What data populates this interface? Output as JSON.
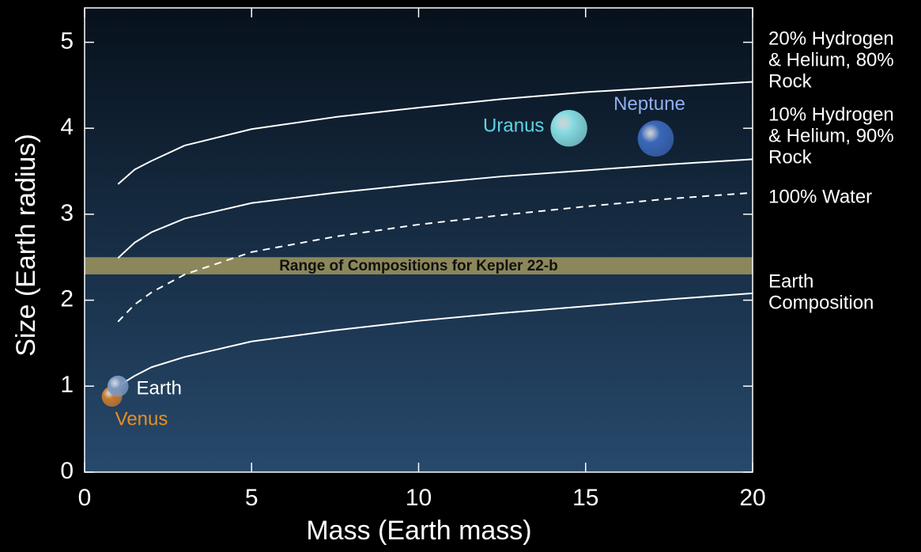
{
  "chart_data": {
    "type": "line",
    "x_label": "Mass (Earth mass)",
    "y_label": "Size (Earth radius)",
    "xlim": [
      0,
      20
    ],
    "ylim": [
      0,
      5.4
    ],
    "xticks": [
      0,
      5,
      10,
      15,
      20
    ],
    "yticks": [
      0,
      1,
      2,
      3,
      4,
      5
    ],
    "x": [
      1,
      1.5,
      2,
      3,
      5,
      7.5,
      10,
      12.5,
      15,
      17.5,
      20
    ],
    "series": [
      {
        "name": [
          "20% Hydrogen",
          "& Helium, 80%",
          "Rock"
        ],
        "color": "#ffffff",
        "dashed": false,
        "values": [
          3.35,
          3.52,
          3.62,
          3.8,
          3.99,
          4.13,
          4.24,
          4.34,
          4.42,
          4.48,
          4.54
        ]
      },
      {
        "name": [
          "10% Hydrogen",
          "& Helium, 90%",
          "Rock"
        ],
        "color": "#ffffff",
        "dashed": false,
        "values": [
          2.49,
          2.67,
          2.79,
          2.95,
          3.13,
          3.25,
          3.35,
          3.44,
          3.51,
          3.58,
          3.64
        ]
      },
      {
        "name": [
          "100% Water"
        ],
        "color": "#ffffff",
        "dashed": true,
        "values": [
          1.75,
          1.95,
          2.09,
          2.3,
          2.56,
          2.74,
          2.88,
          2.99,
          3.09,
          3.18,
          3.25
        ]
      },
      {
        "name": [
          "Earth",
          "Composition"
        ],
        "color": "#ffffff",
        "dashed": false,
        "values": [
          1.0,
          1.12,
          1.22,
          1.34,
          1.52,
          1.65,
          1.76,
          1.85,
          1.93,
          2.01,
          2.08
        ]
      }
    ],
    "band": {
      "range": [
        2.3,
        2.5
      ],
      "label": "Range of Compositions for Kepler 22-b",
      "color": "#8c875a"
    },
    "planets": {
      "type": "scatter",
      "names": [
        "Earth",
        "Venus",
        "Uranus",
        "Neptune"
      ],
      "x": [
        1,
        0.82,
        14.5,
        17.1
      ],
      "y": [
        1,
        0.88,
        4.0,
        3.88
      ],
      "colors": [
        "#7d98bf",
        "#c77a2e",
        "#86dbe0",
        "#3a67b8"
      ],
      "label_colors": [
        "#ffffff",
        "#e8901f",
        "#5fd4e2",
        "#8fb0f2"
      ],
      "label_position": [
        "right",
        "below",
        "left",
        "above"
      ]
    }
  }
}
